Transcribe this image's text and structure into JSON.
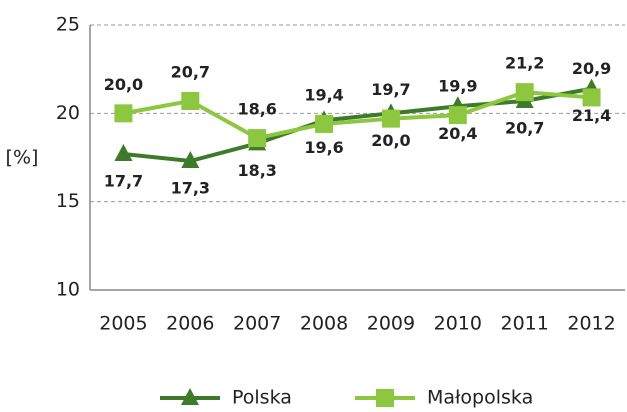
{
  "chart_data": {
    "type": "line",
    "y_label": "[%]",
    "categories": [
      "2005",
      "2006",
      "2007",
      "2008",
      "2009",
      "2010",
      "2011",
      "2012"
    ],
    "series": [
      {
        "name": "Polska",
        "color": "#3d7a2a",
        "marker": "triangle",
        "values": [
          17.7,
          17.3,
          18.3,
          19.6,
          20.0,
          20.4,
          20.7,
          21.4
        ],
        "value_labels": [
          "17,7",
          "17,3",
          "18,3",
          "19,6",
          "20,0",
          "20,4",
          "20,7",
          "21,4"
        ]
      },
      {
        "name": "Małopolska",
        "color": "#8dc63f",
        "marker": "square",
        "values": [
          20.0,
          20.7,
          18.6,
          19.4,
          19.7,
          19.9,
          21.2,
          20.9
        ],
        "value_labels": [
          "20,0",
          "20,7",
          "18,6",
          "19,4",
          "19,7",
          "19,9",
          "21,2",
          "20,9"
        ]
      }
    ],
    "ylim": [
      10,
      25
    ],
    "yticks": [
      10,
      15,
      20,
      25
    ],
    "grid": true
  }
}
